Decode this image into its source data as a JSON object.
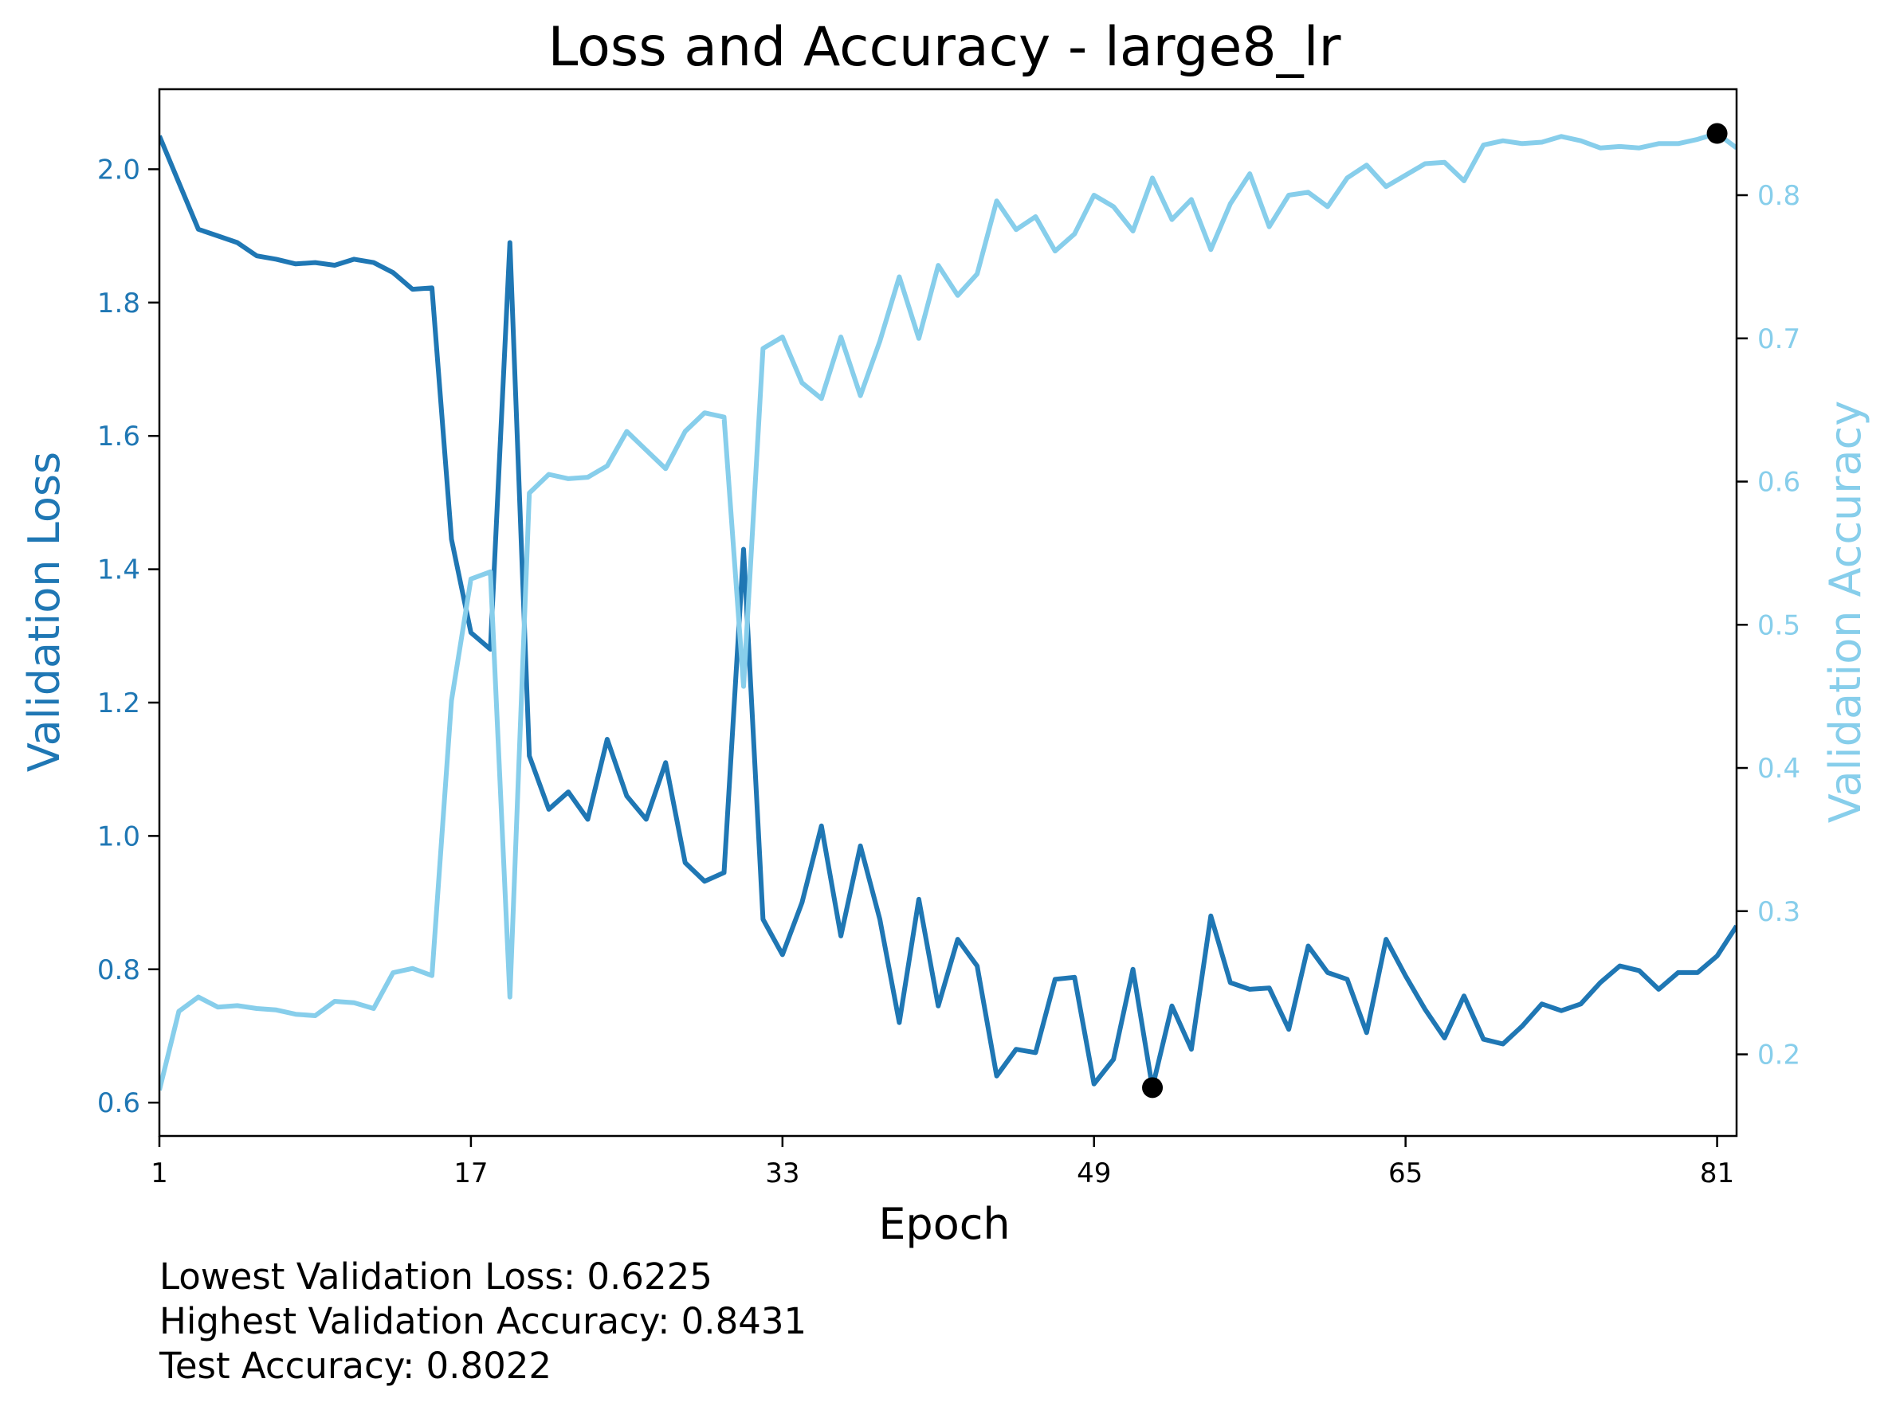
{
  "chart_data": {
    "type": "line",
    "title": "Loss and Accuracy - large8_lr",
    "xlabel": "Epoch",
    "ylabel_left": "Validation Loss",
    "ylabel_right": "Validation Accuracy",
    "xlim": [
      1,
      82
    ],
    "ylim_left": [
      0.55,
      2.12
    ],
    "ylim_right": [
      0.143,
      0.874
    ],
    "x_ticks": [
      1,
      17,
      33,
      49,
      65,
      81
    ],
    "y_ticks_left": [
      0.6,
      0.8,
      1.0,
      1.2,
      1.4,
      1.6,
      1.8,
      2.0
    ],
    "y_ticks_left_labels": [
      "0.6",
      "0.8",
      "1.0",
      "1.2",
      "1.4",
      "1.6",
      "1.8",
      "2.0"
    ],
    "y_ticks_right": [
      0.2,
      0.3,
      0.4,
      0.5,
      0.6,
      0.7,
      0.8
    ],
    "y_ticks_right_labels": [
      "0.2",
      "0.3",
      "0.4",
      "0.5",
      "0.6",
      "0.7",
      "0.8"
    ],
    "grid": false,
    "colors": {
      "loss": "#1f77b4",
      "accuracy": "#87ceeb",
      "marker": "#000000"
    },
    "series": [
      {
        "axis": "left",
        "color": "#1f77b4",
        "values": [
          2.05,
          1.98,
          1.91,
          1.9,
          1.89,
          1.87,
          1.865,
          1.858,
          1.86,
          1.856,
          1.865,
          1.86,
          1.845,
          1.82,
          1.822,
          1.445,
          1.305,
          1.28,
          1.89,
          1.12,
          1.04,
          1.066,
          1.025,
          1.145,
          1.06,
          1.025,
          1.11,
          0.96,
          0.932,
          0.945,
          1.43,
          0.875,
          0.822,
          0.9,
          1.015,
          0.85,
          0.985,
          0.875,
          0.72,
          0.905,
          0.745,
          0.845,
          0.805,
          0.64,
          0.68,
          0.675,
          0.785,
          0.788,
          0.628,
          0.665,
          0.8,
          0.6225,
          0.745,
          0.68,
          0.88,
          0.78,
          0.77,
          0.772,
          0.71,
          0.835,
          0.795,
          0.785,
          0.705,
          0.845,
          0.79,
          0.74,
          0.697,
          0.76,
          0.695,
          0.688,
          0.715,
          0.748,
          0.738,
          0.748,
          0.78,
          0.805,
          0.798,
          0.77,
          0.795,
          0.795,
          0.82,
          0.865
        ]
      },
      {
        "axis": "right",
        "color": "#87ceeb",
        "values": [
          0.175,
          0.23,
          0.24,
          0.233,
          0.234,
          0.232,
          0.231,
          0.228,
          0.227,
          0.237,
          0.236,
          0.232,
          0.257,
          0.26,
          0.255,
          0.447,
          0.532,
          0.537,
          0.24,
          0.592,
          0.605,
          0.602,
          0.603,
          0.611,
          0.635,
          0.622,
          0.609,
          0.635,
          0.648,
          0.645,
          0.457,
          0.693,
          0.701,
          0.669,
          0.658,
          0.701,
          0.66,
          0.698,
          0.743,
          0.7,
          0.751,
          0.73,
          0.745,
          0.796,
          0.776,
          0.785,
          0.761,
          0.773,
          0.8,
          0.792,
          0.775,
          0.812,
          0.783,
          0.797,
          0.762,
          0.794,
          0.815,
          0.778,
          0.8,
          0.802,
          0.792,
          0.812,
          0.821,
          0.806,
          0.814,
          0.822,
          0.823,
          0.81,
          0.835,
          0.838,
          0.836,
          0.837,
          0.841,
          0.838,
          0.833,
          0.834,
          0.833,
          0.836,
          0.836,
          0.839,
          0.8431,
          0.833
        ]
      }
    ],
    "markers": [
      {
        "axis": "left",
        "x": 52,
        "y": 0.6225
      },
      {
        "axis": "right",
        "x": 81,
        "y": 0.8431
      }
    ]
  },
  "stats": {
    "lowest_loss": "Lowest Validation Loss: 0.6225",
    "highest_acc": "Highest Validation Accuracy: 0.8431",
    "test_acc": "Test Accuracy: 0.8022"
  }
}
